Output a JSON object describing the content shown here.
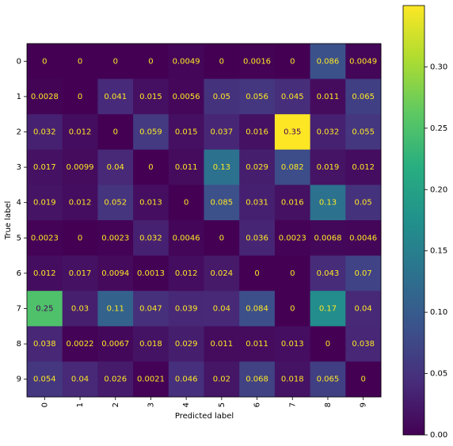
{
  "chart_data": {
    "type": "heatmap",
    "colormap": "viridis",
    "xlabel": "Predicted label",
    "ylabel": "True label",
    "xcategories": [
      "0",
      "1",
      "2",
      "3",
      "4",
      "5",
      "6",
      "7",
      "8",
      "9"
    ],
    "ycategories": [
      "0",
      "1",
      "2",
      "3",
      "4",
      "5",
      "6",
      "7",
      "8",
      "9"
    ],
    "values": [
      [
        0,
        0,
        0,
        0,
        0.0049,
        0,
        0.0016,
        0,
        0.086,
        0.0049
      ],
      [
        0.0028,
        0,
        0.041,
        0.015,
        0.0056,
        0.05,
        0.056,
        0.045,
        0.011,
        0.065
      ],
      [
        0.032,
        0.012,
        0,
        0.059,
        0.015,
        0.037,
        0.016,
        0.35,
        0.032,
        0.055
      ],
      [
        0.017,
        0.0099,
        0.04,
        0,
        0.011,
        0.13,
        0.029,
        0.082,
        0.019,
        0.012
      ],
      [
        0.019,
        0.012,
        0.052,
        0.013,
        0,
        0.085,
        0.031,
        0.016,
        0.13,
        0.05
      ],
      [
        0.0023,
        0,
        0.0023,
        0.032,
        0.0046,
        0,
        0.036,
        0.0023,
        0.0068,
        0.0046
      ],
      [
        0.012,
        0.017,
        0.0094,
        0.0013,
        0.012,
        0.024,
        0,
        0,
        0.043,
        0.07
      ],
      [
        0.25,
        0.03,
        0.11,
        0.047,
        0.039,
        0.04,
        0.084,
        0,
        0.17,
        0.04
      ],
      [
        0.038,
        0.0022,
        0.0067,
        0.018,
        0.029,
        0.011,
        0.011,
        0.013,
        0,
        0.038
      ],
      [
        0.054,
        0.04,
        0.026,
        0.0021,
        0.046,
        0.02,
        0.068,
        0.018,
        0.065,
        0
      ]
    ],
    "clim": [
      0,
      0.35
    ],
    "cticks": [
      {
        "value": 0,
        "label": "0.00"
      },
      0.05,
      {
        "value": 0.1,
        "label": "0.10"
      },
      0.15,
      {
        "value": 0.2,
        "label": "0.20"
      },
      0.25,
      {
        "value": 0.3,
        "label": "0.30"
      }
    ]
  }
}
